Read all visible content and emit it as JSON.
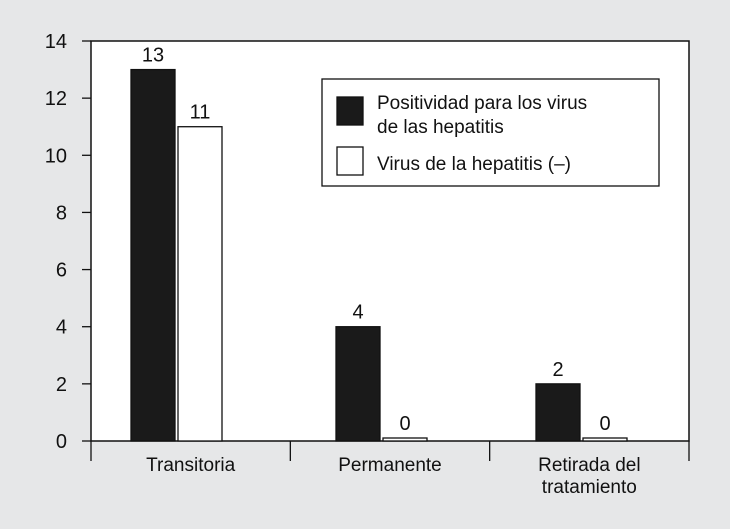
{
  "colors": {
    "background": "#e6e7e8",
    "plot_background": "#ffffff",
    "series_positive": "#1a1a1a",
    "series_negative": "#ffffff",
    "axis": "#111111"
  },
  "chart_data": {
    "type": "bar",
    "title": "",
    "xlabel": "",
    "ylabel": "",
    "ylim": [
      0,
      14
    ],
    "yticks": [
      0,
      2,
      4,
      6,
      8,
      10,
      12,
      14
    ],
    "categories": [
      [
        "Transitoria"
      ],
      [
        "Permanente"
      ],
      [
        "Retirada del",
        "tratamiento"
      ]
    ],
    "series": [
      {
        "name_lines": [
          "Positividad para los virus",
          "de las hepatitis"
        ],
        "color": "#1a1a1a",
        "values": [
          13,
          4,
          2
        ]
      },
      {
        "name_lines": [
          "Virus de la hepatitis (–)"
        ],
        "color": "#ffffff",
        "values": [
          11,
          0,
          0
        ]
      }
    ],
    "legend_position": "top-right",
    "grid": false
  }
}
